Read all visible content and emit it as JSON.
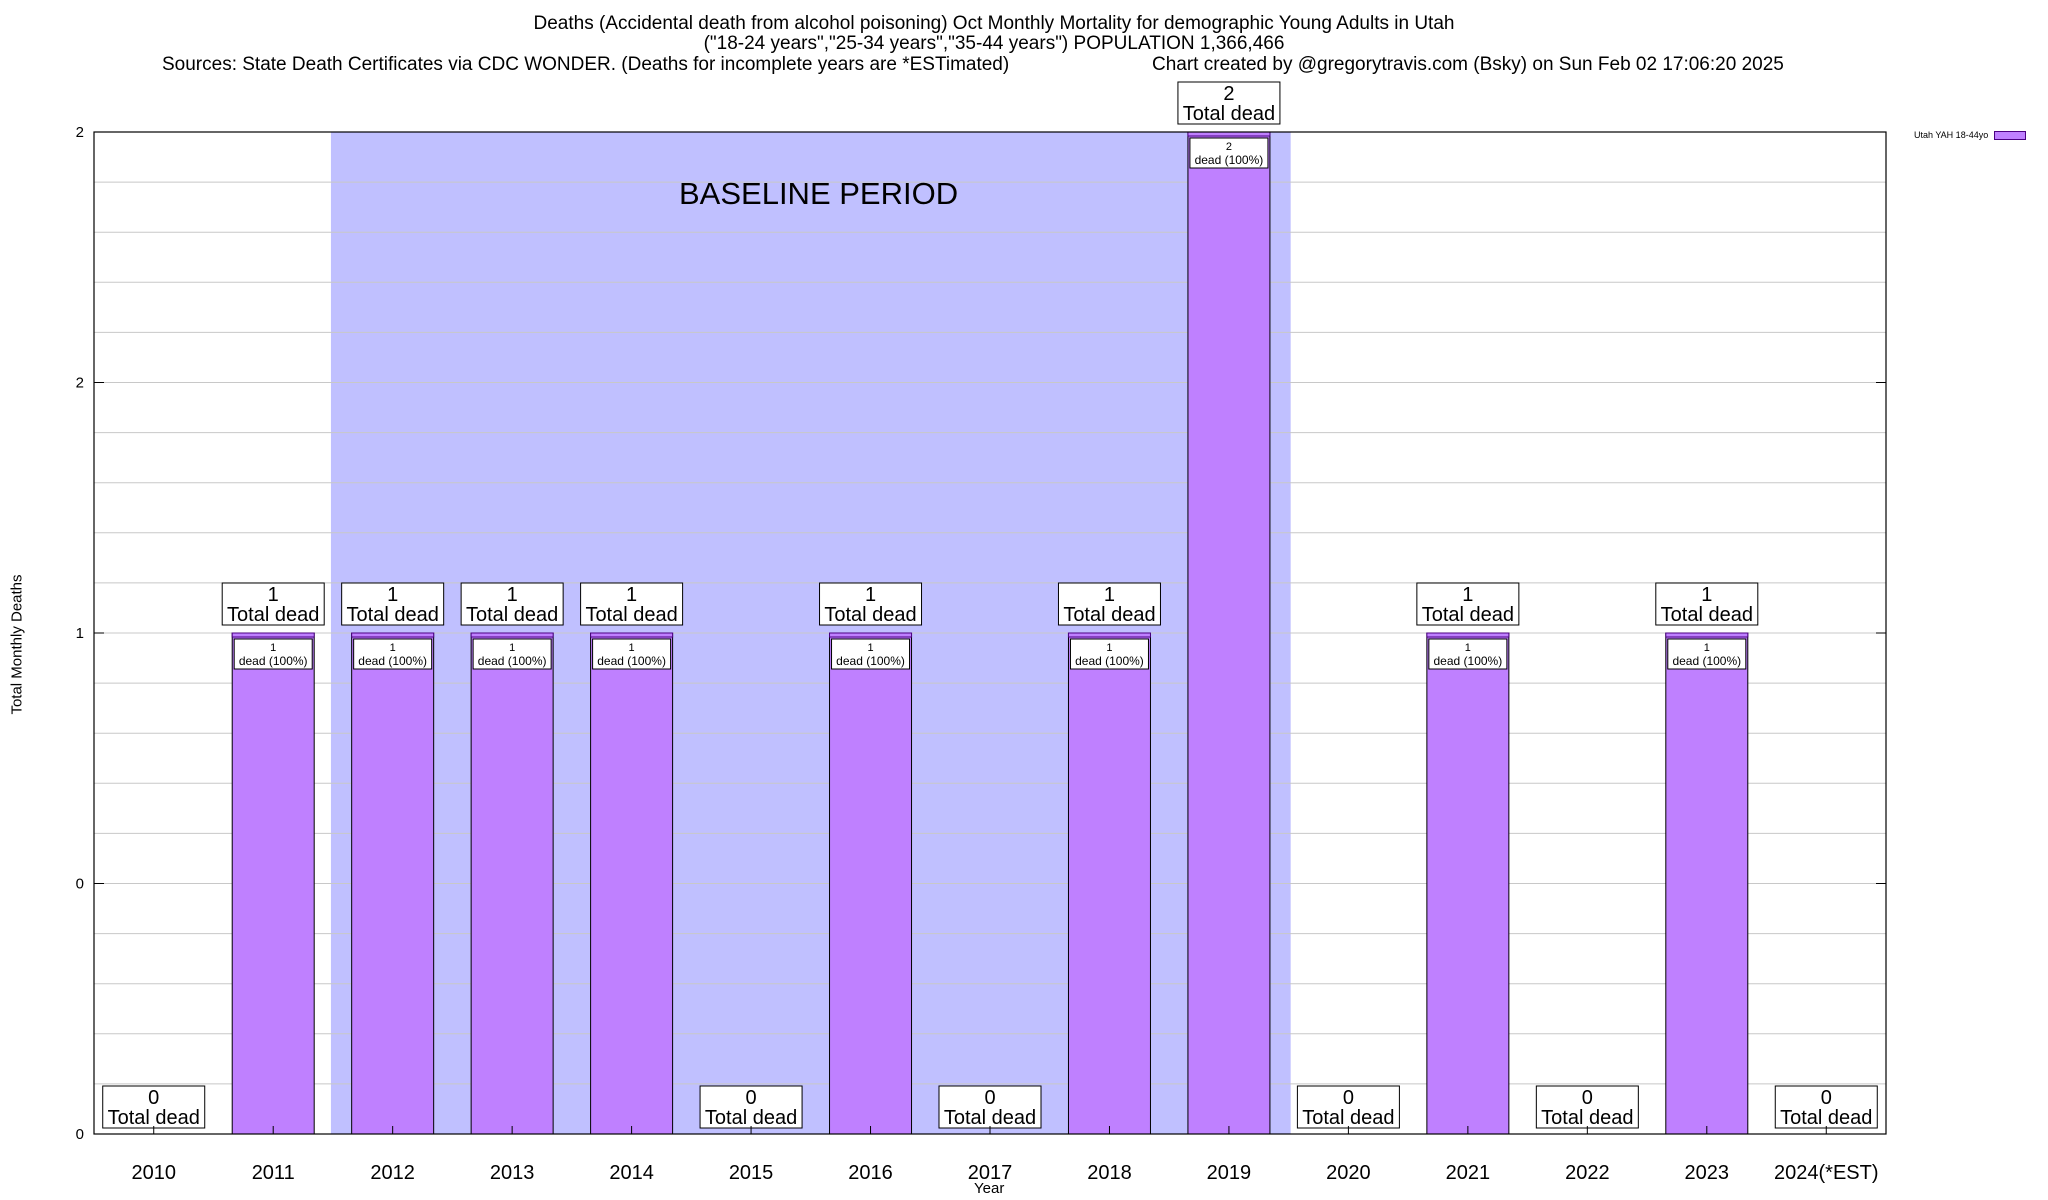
{
  "title_line1": "Deaths (Accidental death from alcohol poisoning) Oct Monthly Mortality for demographic Young Adults in Utah",
  "title_line2": "(\"18-24 years\",\"25-34 years\",\"35-44 years\") POPULATION 1,366,466",
  "sources": "Sources: State Death Certificates via CDC WONDER. (Deaths for incomplete years are *ESTimated)",
  "credit": "Chart created by @gregorytravis.com (Bsky) on Sun Feb 02 17:06:20 2025",
  "legend_label": "Utah YAH 18-44yo",
  "baseline_label": "BASELINE PERIOD",
  "total_label": "Total dead",
  "inner_label_suffix": "dead (100%)",
  "colors": {
    "bar": "#bf80ff",
    "bar_edge": "#4b0082",
    "baseline": "#c0c0ff"
  },
  "chart_data": {
    "type": "bar",
    "categories": [
      "2010",
      "2011",
      "2012",
      "2013",
      "2014",
      "2015",
      "2016",
      "2017",
      "2018",
      "2019",
      "2020",
      "2021",
      "2022",
      "2023",
      "2024(*EST)"
    ],
    "series": [
      {
        "name": "Utah YAH 18-44yo",
        "values": [
          0,
          1,
          1,
          1,
          1,
          0,
          1,
          0,
          1,
          2,
          0,
          1,
          0,
          1,
          0
        ]
      }
    ],
    "xlabel": "Year",
    "ylabel": "Total Monthly Deaths",
    "ylim": [
      0,
      2
    ],
    "y_tick_labels": [
      "0",
      "0",
      "1",
      "2",
      "2"
    ],
    "baseline_period": [
      "2012",
      "2019"
    ],
    "grid": true,
    "legend": "top-right"
  }
}
